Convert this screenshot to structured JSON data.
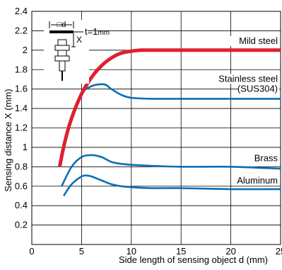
{
  "chart_data": {
    "type": "line",
    "title": "",
    "xlabel": "Side length of sensing object d (mm)",
    "ylabel": "Sensing distance X (mm)",
    "xlim": [
      0,
      25
    ],
    "ylim": [
      0,
      2.4
    ],
    "x_ticks": [
      "0",
      "5",
      "10",
      "15",
      "20",
      "25"
    ],
    "y_ticks": [
      "0.2",
      "0.4",
      "0.6",
      "0.8",
      "1",
      "1.2",
      "1.4",
      "1.6",
      "1.8",
      "2",
      "2.2",
      "2.4"
    ],
    "grid": true,
    "inset": {
      "d_label": "□d",
      "x_label": "X",
      "t_label": "t=1",
      "t_unit": "mm"
    },
    "series": [
      {
        "name": "Mild steel",
        "color": "#e0202f",
        "x": [
          2.8,
          3.3,
          4,
          5,
          6,
          7,
          8,
          9,
          10,
          11,
          12,
          15,
          20,
          25
        ],
        "y": [
          0.8,
          1.05,
          1.3,
          1.55,
          1.72,
          1.84,
          1.92,
          1.97,
          1.99,
          2.0,
          2.0,
          2.0,
          2.0,
          2.0
        ]
      },
      {
        "name": "Stainless steel\n(SUS304)",
        "color": "#0a6fb4",
        "x": [
          2.8,
          3.3,
          4,
          5,
          6,
          7,
          7.5,
          8,
          9,
          10,
          12,
          15,
          20,
          25
        ],
        "y": [
          0.8,
          1.05,
          1.32,
          1.55,
          1.63,
          1.65,
          1.64,
          1.6,
          1.54,
          1.51,
          1.5,
          1.5,
          1.5,
          1.5
        ]
      },
      {
        "name": "Brass",
        "color": "#0a6fb4",
        "x": [
          3,
          4,
          5,
          6,
          7,
          8,
          9,
          10,
          12,
          15,
          20,
          25
        ],
        "y": [
          0.6,
          0.8,
          0.9,
          0.92,
          0.9,
          0.85,
          0.83,
          0.82,
          0.81,
          0.8,
          0.8,
          0.78
        ]
      },
      {
        "name": "Aluminum",
        "color": "#0a6fb4",
        "x": [
          3.2,
          4,
          5,
          5.5,
          6,
          7,
          8,
          9,
          10,
          12,
          15,
          20,
          25
        ],
        "y": [
          0.5,
          0.62,
          0.7,
          0.71,
          0.7,
          0.66,
          0.62,
          0.6,
          0.59,
          0.58,
          0.58,
          0.57,
          0.57
        ]
      }
    ]
  }
}
